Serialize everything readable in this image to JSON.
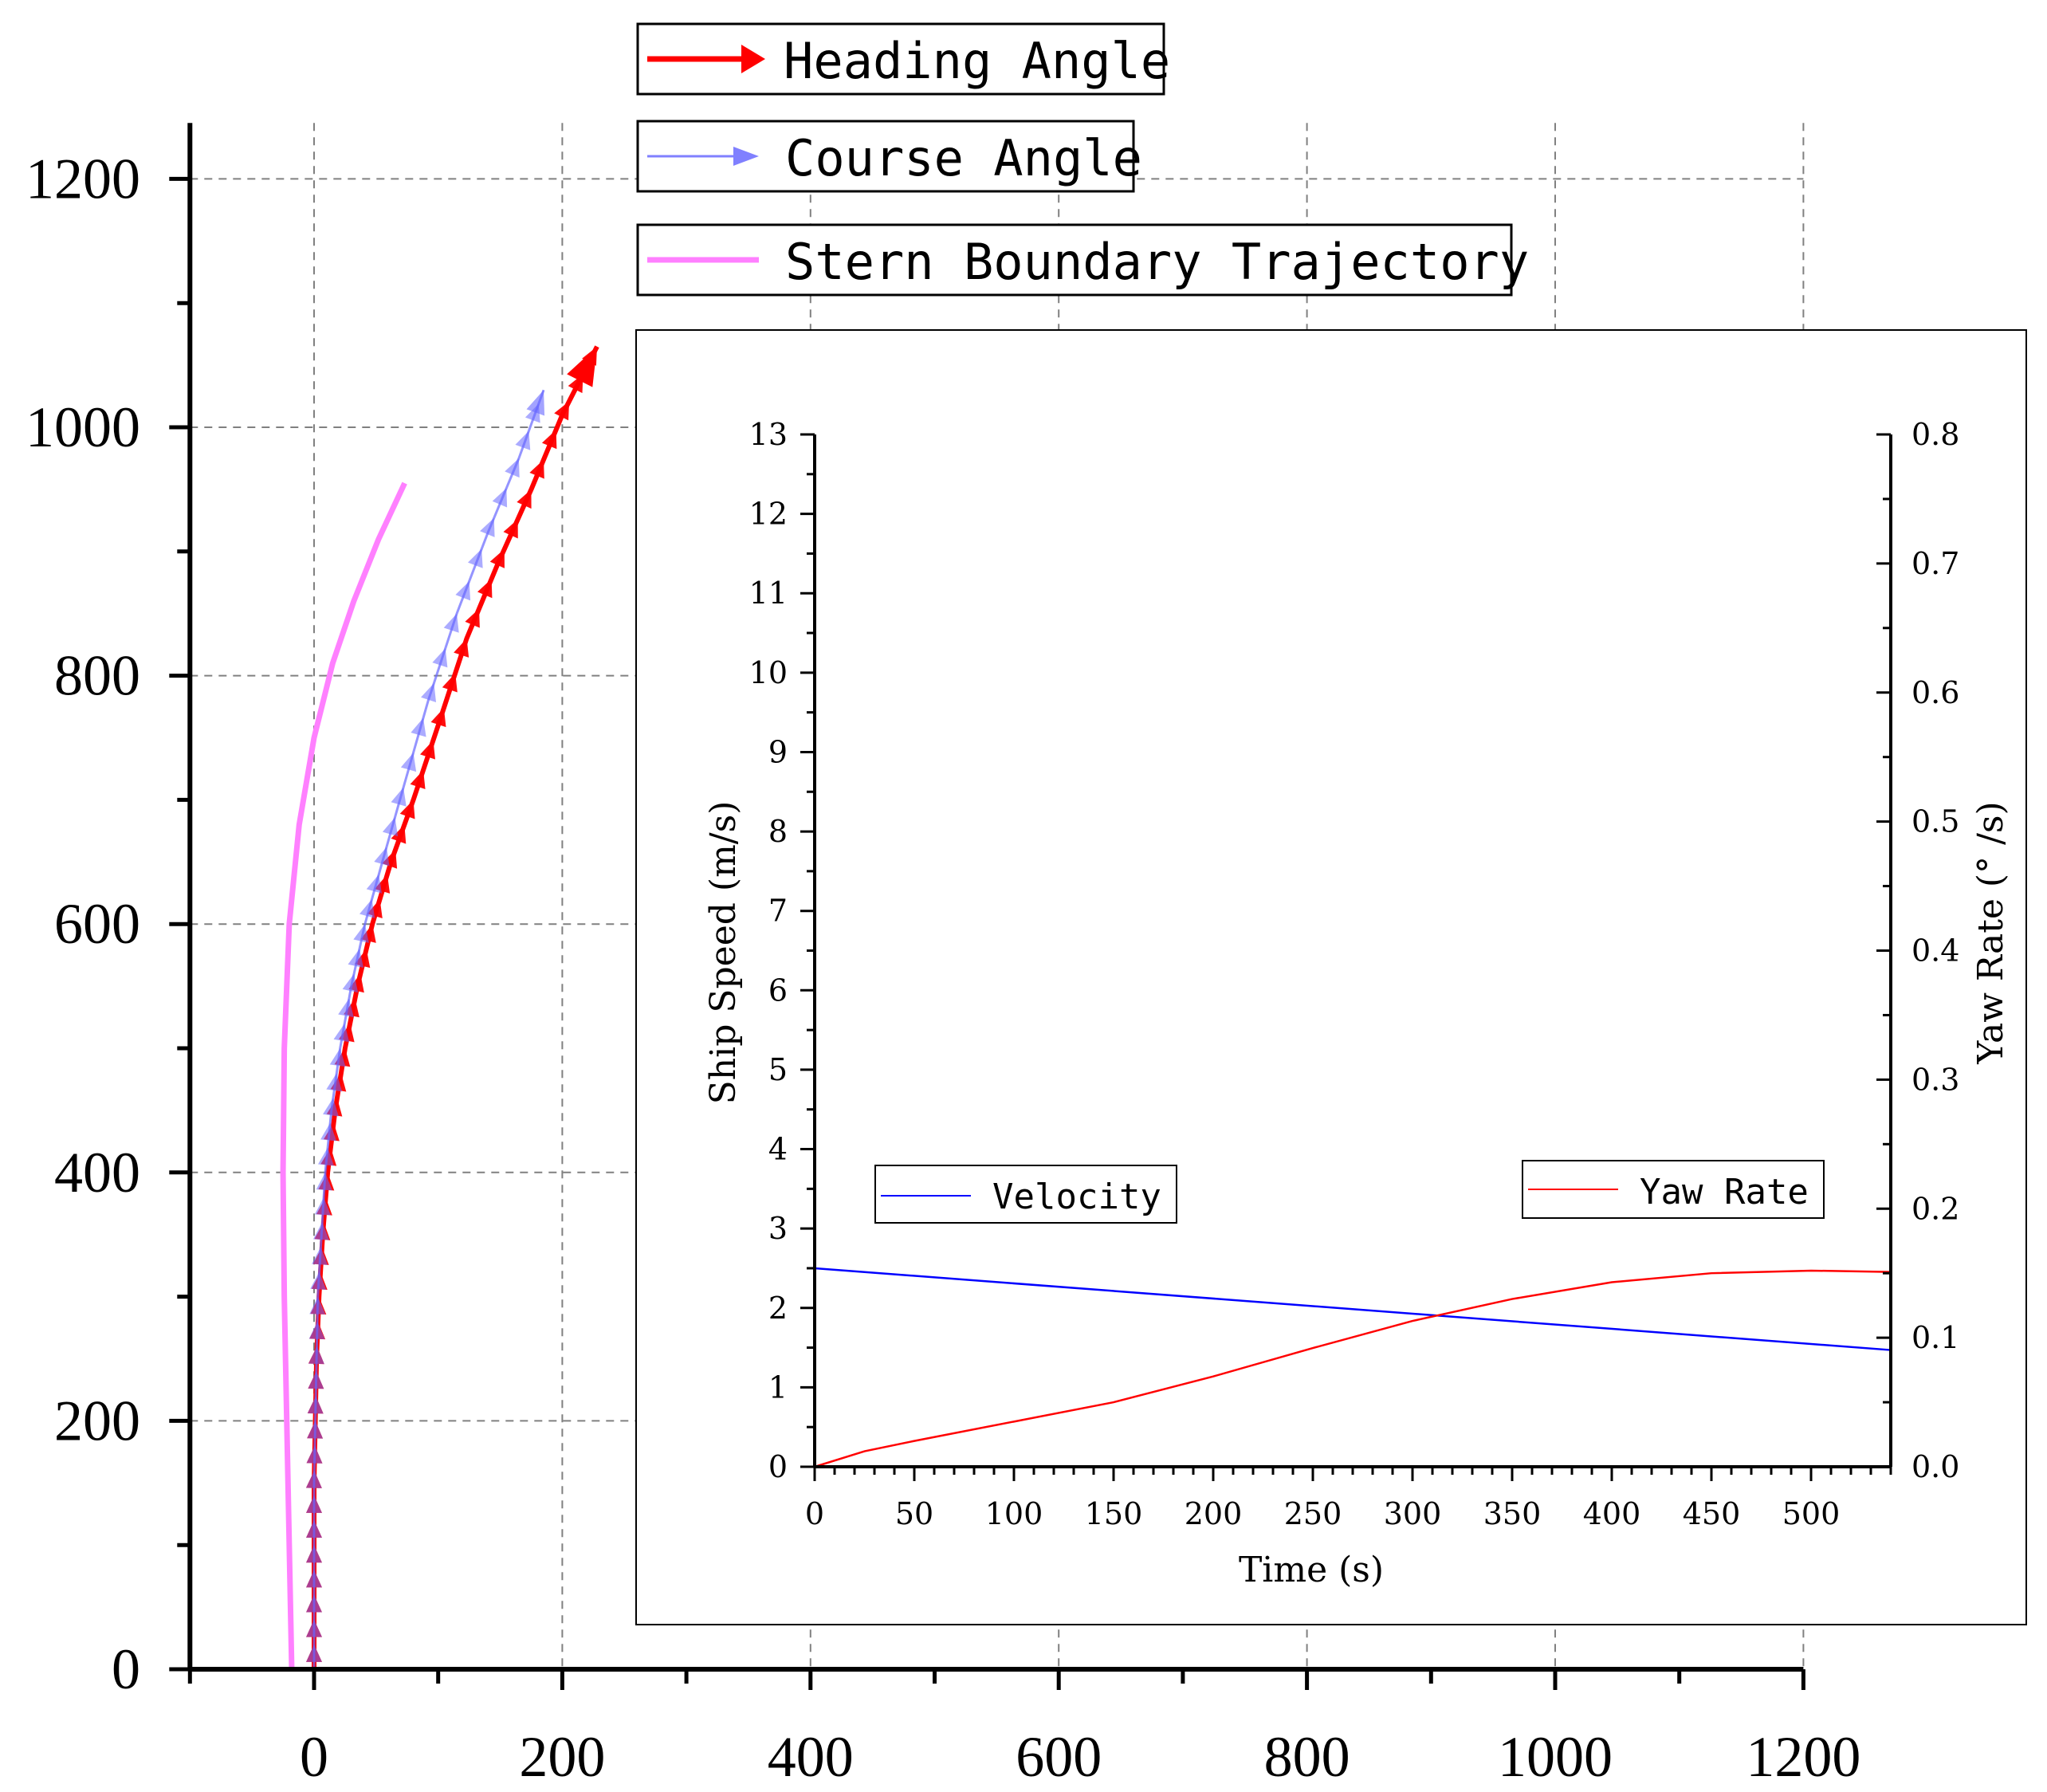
{
  "chart_data": [
    {
      "id": "main",
      "type": "line",
      "xlim": [
        -100,
        1200
      ],
      "ylim": [
        0,
        1300
      ],
      "xticks": [
        0,
        200,
        400,
        600,
        800,
        1000,
        1200
      ],
      "yticks": [
        0,
        200,
        400,
        600,
        800,
        1000,
        1200
      ],
      "xtick_labels": [
        "0",
        "200",
        "400",
        "600",
        "800",
        "1000",
        "1200"
      ],
      "ytick_labels": [
        "0",
        "200",
        "400",
        "600",
        "800",
        "1000",
        "1200"
      ],
      "grid": true,
      "series": [
        {
          "name": "Heading Angle",
          "color": "#ff0000",
          "style": "arrow-markers",
          "x": [
            0,
            0,
            0,
            0,
            1,
            2,
            4,
            7,
            11,
            17,
            25,
            35,
            47,
            62,
            80,
            100,
            123,
            148,
            175,
            200,
            228
          ],
          "y": [
            0,
            50,
            100,
            150,
            200,
            250,
            300,
            350,
            400,
            450,
            500,
            550,
            600,
            650,
            700,
            760,
            830,
            890,
            950,
            1010,
            1065
          ]
        },
        {
          "name": "Course Angle",
          "color": "#0000ff",
          "style": "arrow-markers",
          "x": [
            0,
            0,
            0,
            0,
            1,
            2,
            3,
            6,
            9,
            14,
            21,
            30,
            41,
            55,
            72,
            92,
            115,
            140,
            165,
            185
          ],
          "y": [
            0,
            50,
            100,
            150,
            200,
            250,
            300,
            350,
            400,
            450,
            500,
            550,
            600,
            650,
            710,
            780,
            850,
            915,
            975,
            1030
          ]
        },
        {
          "name": "Stern Boundary Trajectory",
          "color": "#ff80ff",
          "style": "line",
          "x": [
            -18,
            -20,
            -22,
            -24,
            -25,
            -24,
            -20,
            -12,
            0,
            15,
            32,
            52,
            73
          ],
          "y": [
            0,
            100,
            200,
            300,
            400,
            500,
            600,
            680,
            750,
            810,
            860,
            910,
            955
          ]
        }
      ],
      "legend": [
        {
          "label": "Heading Angle",
          "color": "#ff0000",
          "symbol": "arrow"
        },
        {
          "label": "Course Angle",
          "color": "#8080ff",
          "symbol": "arrow"
        },
        {
          "label": "Stern Boundary Trajectory",
          "color": "#ff80ff",
          "symbol": "line"
        }
      ],
      "legend_location": "top"
    },
    {
      "id": "inset",
      "type": "line",
      "xlabel": "Time (s)",
      "ylabel": "Ship Speed (m/s)",
      "y2label": "Yaw Rate (° /s)",
      "xlim": [
        0,
        540
      ],
      "ylim": [
        0,
        13
      ],
      "y2lim": [
        0,
        0.8
      ],
      "xticks": [
        0,
        50,
        100,
        150,
        200,
        250,
        300,
        350,
        400,
        450,
        500
      ],
      "xtick_labels": [
        "0",
        "50",
        "100",
        "150",
        "200",
        "250",
        "300",
        "350",
        "400",
        "450",
        "500"
      ],
      "yticks": [
        0,
        1,
        2,
        3,
        4,
        5,
        6,
        7,
        8,
        9,
        10,
        11,
        12,
        13
      ],
      "ytick_labels": [
        "0",
        "1",
        "2",
        "3",
        "4",
        "5",
        "6",
        "7",
        "8",
        "9",
        "10",
        "11",
        "12",
        "13"
      ],
      "y2ticks": [
        0.0,
        0.1,
        0.2,
        0.3,
        0.4,
        0.5,
        0.6,
        0.7,
        0.8
      ],
      "y2tick_labels": [
        "0.0",
        "0.1",
        "0.2",
        "0.3",
        "0.4",
        "0.5",
        "0.6",
        "0.7",
        "0.8"
      ],
      "series": [
        {
          "name": "Velocity",
          "axis": "left",
          "color": "#0000ff",
          "x": [
            0,
            540
          ],
          "y": [
            2.5,
            1.47
          ]
        },
        {
          "name": "Yaw Rate",
          "axis": "right",
          "color": "#ff0000",
          "x": [
            0,
            25,
            50,
            100,
            150,
            200,
            250,
            300,
            350,
            400,
            450,
            500,
            540
          ],
          "y": [
            0.0,
            0.012,
            0.02,
            0.035,
            0.05,
            0.07,
            0.092,
            0.113,
            0.13,
            0.143,
            0.15,
            0.152,
            0.151
          ]
        }
      ],
      "legend": [
        {
          "label": "Velocity",
          "color": "#0000ff"
        },
        {
          "label": "Yaw Rate",
          "color": "#ff0000"
        }
      ]
    }
  ]
}
